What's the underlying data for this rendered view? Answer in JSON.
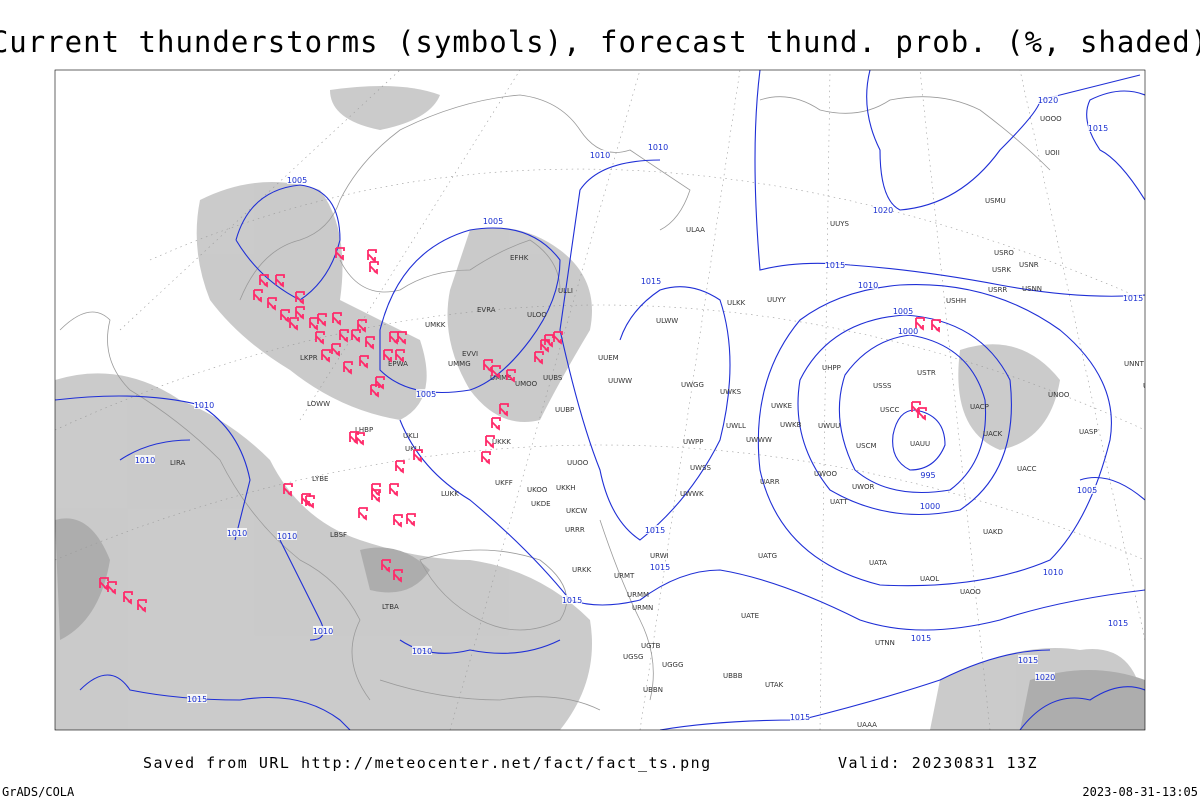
{
  "title": "Current thunderstorms (symbols), forecast thund. prob. (%, shaded)",
  "footer": {
    "source": "Saved from URL http://meteocenter.net/fact/fact_ts.png",
    "valid": "Valid: 20230831 13Z",
    "credit": "GrADS/COLA",
    "timestamp": "2023-08-31-13:05"
  },
  "isobar_labels": [
    "1005",
    "1010",
    "1010",
    "1005",
    "1015",
    "1020",
    "1015",
    "1020",
    "1015",
    "1010",
    "1015",
    "1005",
    "1000",
    "995",
    "1000",
    "1005",
    "1010",
    "1010",
    "1010",
    "1010",
    "1015",
    "1015",
    "1015",
    "1010",
    "1015",
    "1010",
    "1010",
    "1015",
    "1015",
    "1005",
    "1015",
    "1020",
    "1015"
  ],
  "stations": [
    "ULAA",
    "ULKK",
    "UUYY",
    "ULWW",
    "UUEM",
    "UUWW",
    "UWGG",
    "UWKS",
    "UWKE",
    "UWKB",
    "UWUU",
    "UWLL",
    "UWWW",
    "UWPP",
    "UUOO",
    "UWSS",
    "UWWK",
    "UARR",
    "UWOO",
    "UWOR",
    "UATT",
    "USTR",
    "USSS",
    "USCC",
    "USCM",
    "UAUU",
    "UACP",
    "UACK",
    "UAKD",
    "UACC",
    "UASP",
    "UNOO",
    "USHH",
    "USRR",
    "USNN",
    "USRK",
    "USRO",
    "USNR",
    "UUYS",
    "USMU",
    "UOOO",
    "UOII",
    "ULLI",
    "ULOO",
    "UMKK",
    "EVRA",
    "EVVI",
    "UMMG",
    "UMMS",
    "UMOO",
    "UUBS",
    "UUBP",
    "UKKK",
    "UKLL",
    "UKLI",
    "UKFF",
    "UKOO",
    "UKKH",
    "UKDE",
    "UKCW",
    "URRR",
    "URWI",
    "UATG",
    "URKK",
    "URMT",
    "URMM",
    "URMN",
    "UATE",
    "UGTB",
    "UGSG",
    "UGGG",
    "UBBB",
    "UBBN",
    "UTAK",
    "UATA",
    "UAOL",
    "UAOO",
    "UTNN",
    "UAAA",
    "EFHK",
    "EPWA",
    "LYBE",
    "LBSF",
    "LIRA",
    "LKPR",
    "LOWW",
    "LHBP",
    "LTBA",
    "LUKK",
    "UNNT",
    "UNBB",
    "UHPP"
  ]
}
